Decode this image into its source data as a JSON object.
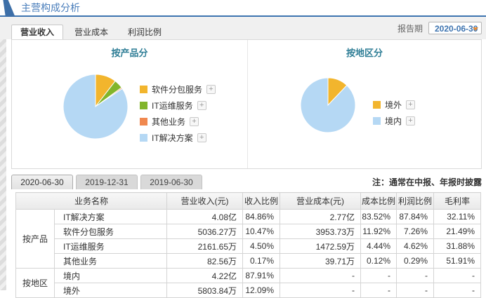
{
  "page": {
    "title": "主营构成分析",
    "report_period_label": "报告期",
    "report_period_value": "2020-06-30",
    "note": "注：通常在中报、年报时披露"
  },
  "colors": {
    "title_blue": "#4A7EBB",
    "chart_title_teal": "#2F7E96",
    "link_blue": "#3E74B0",
    "pie_yellow": "#F2B52D",
    "pie_green": "#82B52B",
    "pie_orange": "#F0884F",
    "pie_blue": "#B5D8F4"
  },
  "tabs": [
    {
      "label": "营业收入",
      "active": true
    },
    {
      "label": "营业成本",
      "active": false
    },
    {
      "label": "利润比例",
      "active": false
    }
  ],
  "period_buttons": [
    {
      "label": "2020-06-30",
      "active": true
    },
    {
      "label": "2019-12-31",
      "active": false
    },
    {
      "label": "2019-06-30",
      "active": false
    }
  ],
  "chart_data": [
    {
      "type": "pie",
      "title": "按产品分",
      "legend_position": "right",
      "slices": [
        {
          "label": "软件分包服务",
          "value": 10.47,
          "color": "#F2B52D"
        },
        {
          "label": "IT运维服务",
          "value": 4.5,
          "color": "#82B52B"
        },
        {
          "label": "其他业务",
          "value": 0.17,
          "color": "#F0884F"
        },
        {
          "label": "IT解决方案",
          "value": 84.86,
          "color": "#B5D8F4"
        }
      ]
    },
    {
      "type": "pie",
      "title": "按地区分",
      "legend_position": "right",
      "slices": [
        {
          "label": "境外",
          "value": 12.09,
          "color": "#F2B52D"
        },
        {
          "label": "境内",
          "value": 87.91,
          "color": "#B5D8F4"
        }
      ]
    }
  ],
  "table": {
    "headers": [
      "业务名称",
      "营业收入(元)",
      "收入比例",
      "营业成本(元)",
      "成本比例",
      "利润比例",
      "毛利率"
    ],
    "groups": [
      {
        "name": "按产品",
        "rows": [
          [
            "IT解决方案",
            "4.08亿",
            "84.86%",
            "2.77亿",
            "83.52%",
            "87.84%",
            "32.11%"
          ],
          [
            "软件分包服务",
            "5036.27万",
            "10.47%",
            "3953.73万",
            "11.92%",
            "7.26%",
            "21.49%"
          ],
          [
            "IT运维服务",
            "2161.65万",
            "4.50%",
            "1472.59万",
            "4.44%",
            "4.62%",
            "31.88%"
          ],
          [
            "其他业务",
            "82.56万",
            "0.17%",
            "39.71万",
            "0.12%",
            "0.29%",
            "51.91%"
          ]
        ]
      },
      {
        "name": "按地区",
        "rows": [
          [
            "境内",
            "4.22亿",
            "87.91%",
            "-",
            "-",
            "-",
            "-"
          ],
          [
            "境外",
            "5803.84万",
            "12.09%",
            "-",
            "-",
            "-",
            "-"
          ]
        ]
      }
    ]
  }
}
